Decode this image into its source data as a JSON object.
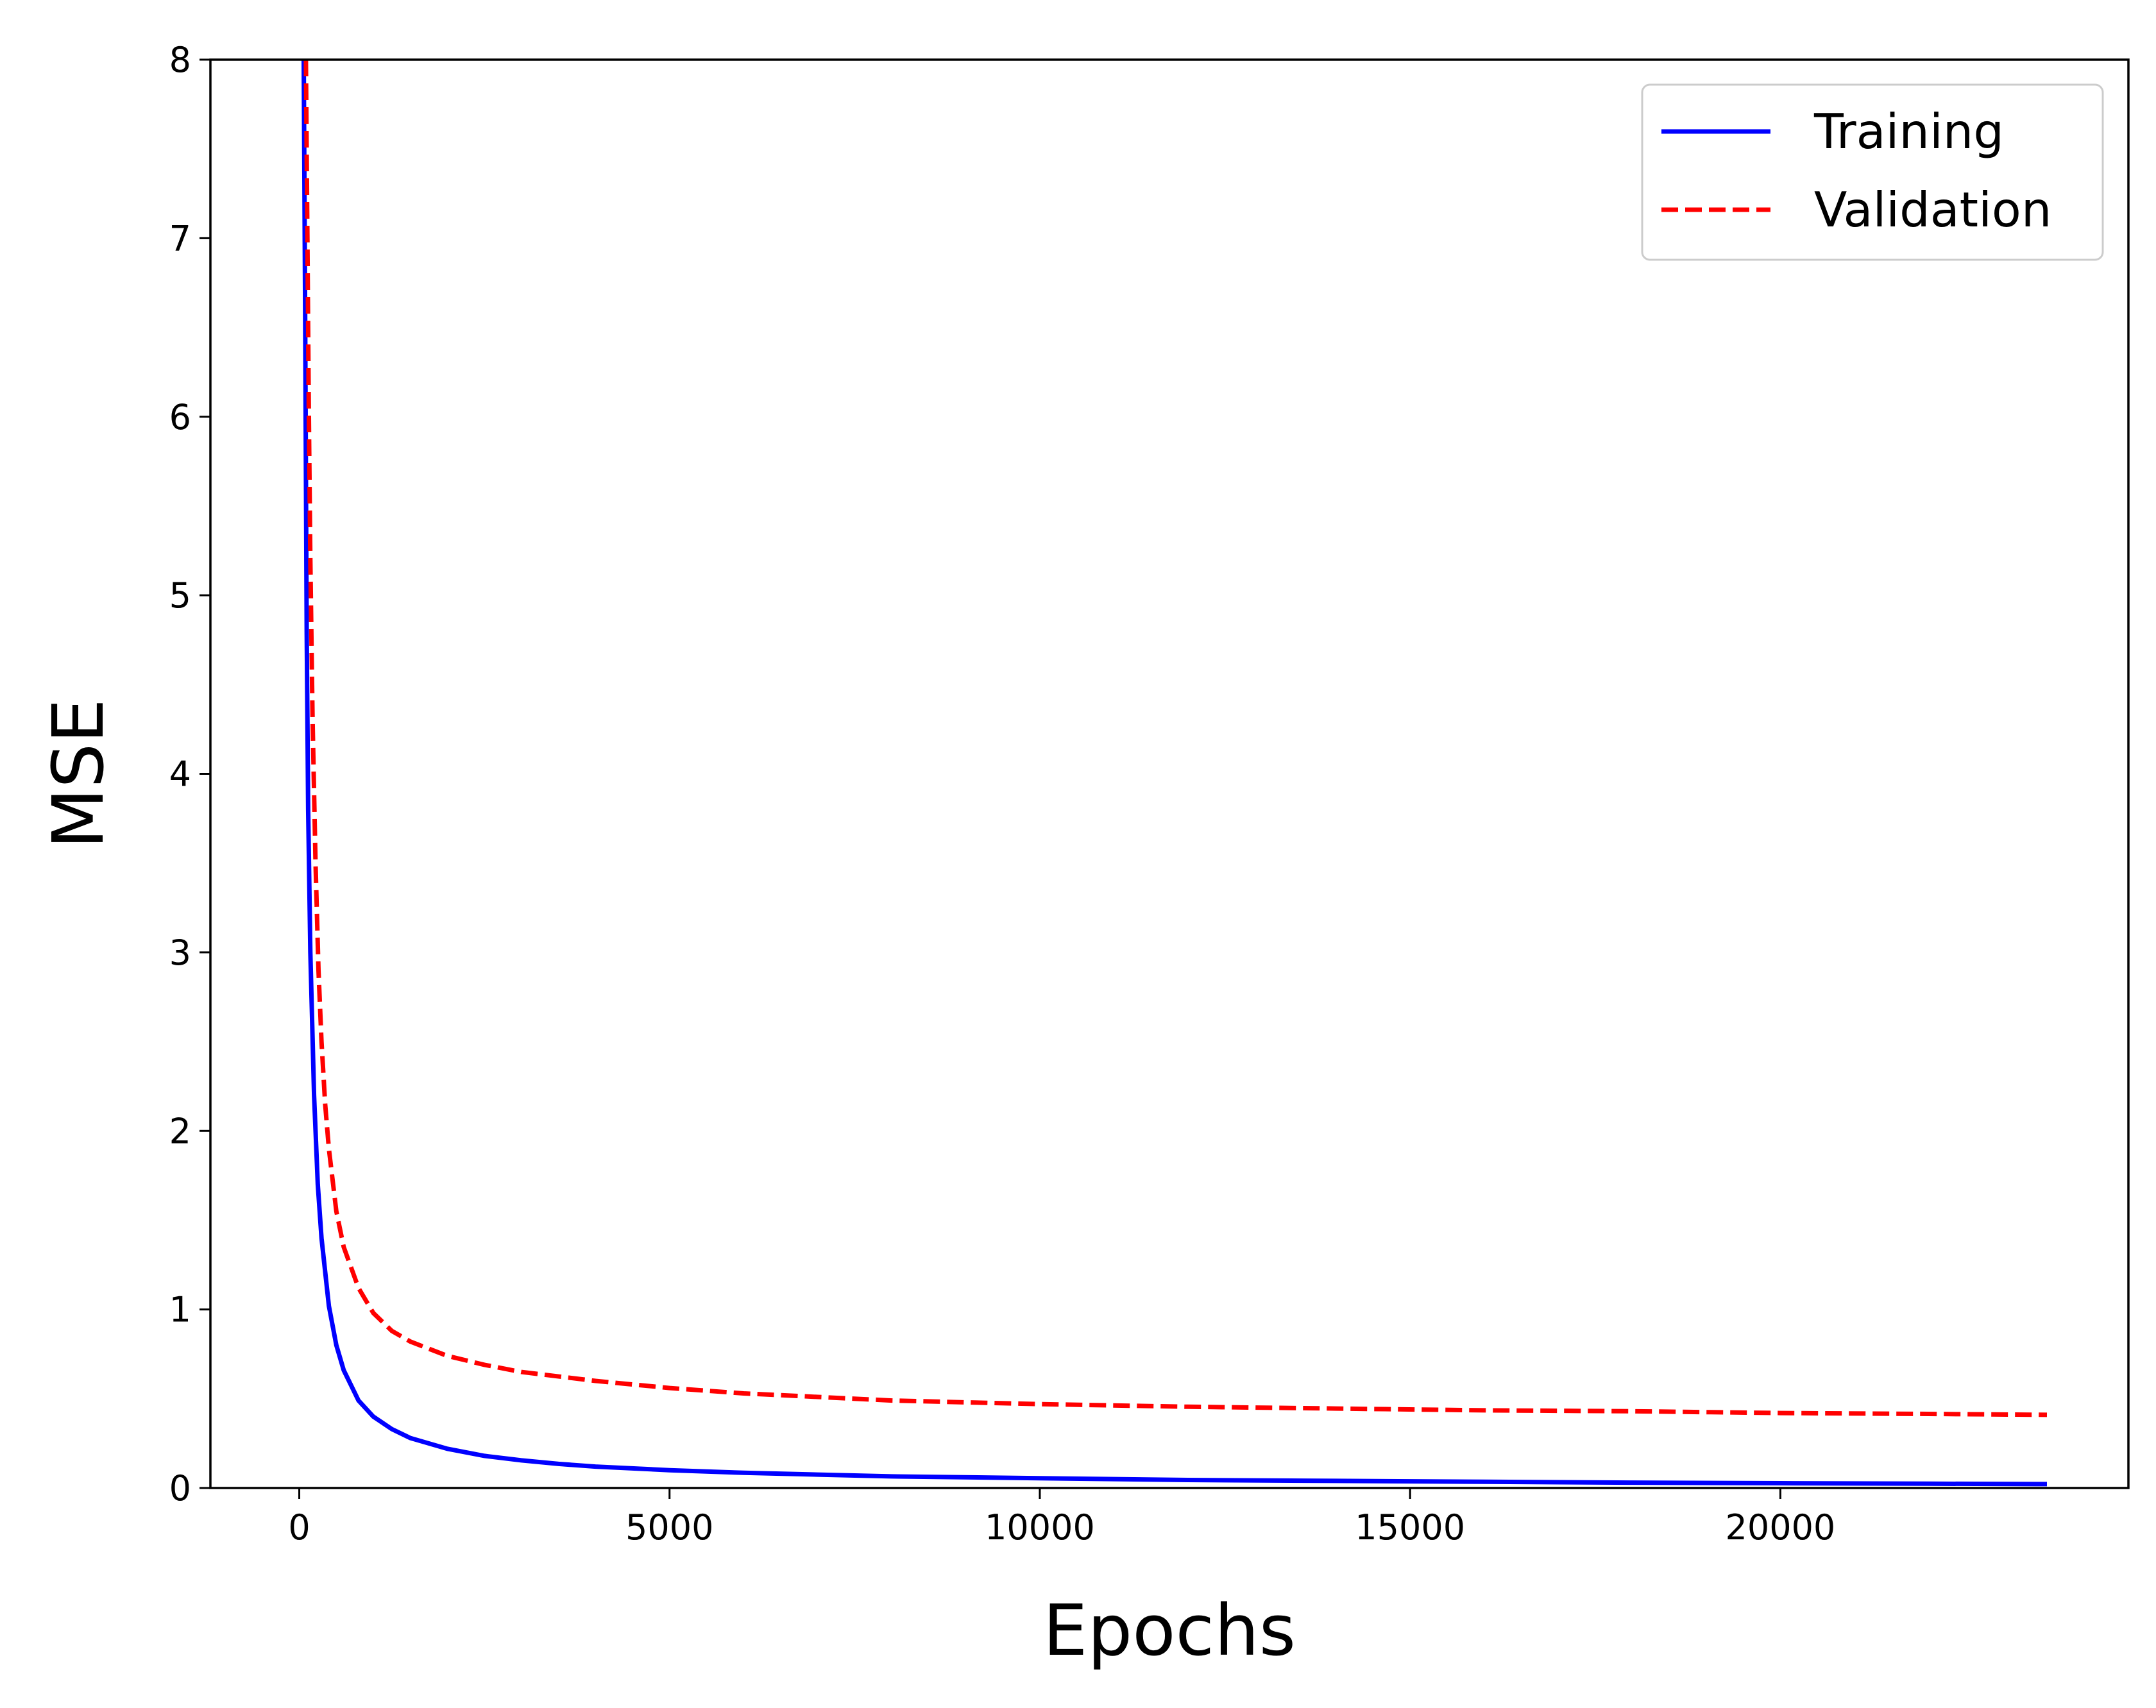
{
  "chart_data": {
    "type": "line",
    "title": "",
    "xlabel": "Epochs",
    "ylabel": "MSE",
    "xlim": [
      -1200,
      24700
    ],
    "ylim": [
      0,
      8
    ],
    "xticks": [
      0,
      5000,
      10000,
      15000,
      20000
    ],
    "yticks": [
      0,
      1,
      2,
      3,
      4,
      5,
      6,
      7,
      8
    ],
    "grid": false,
    "legend_position": "top-right",
    "series": [
      {
        "name": "Training",
        "color": "#0000ff",
        "style": "solid",
        "x": [
          60,
          80,
          100,
          120,
          150,
          200,
          250,
          300,
          400,
          500,
          600,
          800,
          1000,
          1250,
          1500,
          2000,
          2500,
          3000,
          3500,
          4000,
          5000,
          6000,
          7000,
          8000,
          10000,
          12000,
          14000,
          16000,
          18000,
          20000,
          22000,
          23600
        ],
        "y": [
          8.0,
          6.5,
          4.8,
          3.8,
          3.0,
          2.2,
          1.7,
          1.4,
          1.02,
          0.8,
          0.66,
          0.49,
          0.4,
          0.33,
          0.28,
          0.22,
          0.18,
          0.155,
          0.135,
          0.12,
          0.1,
          0.085,
          0.075,
          0.065,
          0.055,
          0.045,
          0.04,
          0.035,
          0.03,
          0.027,
          0.024,
          0.022
        ]
      },
      {
        "name": "Validation",
        "color": "#ff0000",
        "style": "dashed",
        "x": [
          90,
          110,
          130,
          150,
          180,
          220,
          260,
          300,
          350,
          400,
          500,
          600,
          800,
          1000,
          1250,
          1500,
          2000,
          2500,
          3000,
          4000,
          5000,
          6000,
          7000,
          8000,
          10000,
          12000,
          14000,
          16000,
          18000,
          20000,
          22000,
          23600
        ],
        "y": [
          8.0,
          7.0,
          6.0,
          5.2,
          4.3,
          3.5,
          2.9,
          2.5,
          2.15,
          1.9,
          1.55,
          1.35,
          1.12,
          0.98,
          0.88,
          0.82,
          0.74,
          0.69,
          0.65,
          0.6,
          0.56,
          0.53,
          0.51,
          0.49,
          0.47,
          0.455,
          0.445,
          0.435,
          0.43,
          0.42,
          0.415,
          0.41
        ]
      }
    ]
  }
}
